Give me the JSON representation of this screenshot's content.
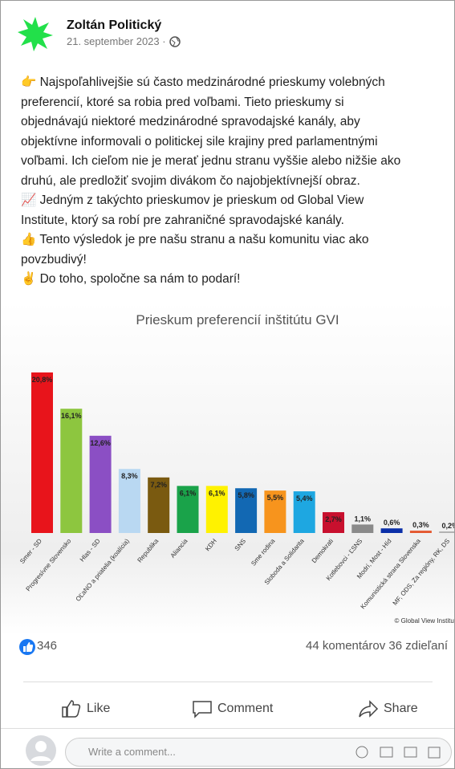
{
  "post": {
    "author": "Zoltán Politický",
    "date": "21. september 2023 ·",
    "text_lines": [
      "👉 Najspoľahlivejšie sú často medzinárodné prieskumy volebných",
      "preferencií, ktoré sa robia pred voľbami. Tieto prieskumy si",
      "objednávajú niektoré medzinárodné spravodajské kanály, aby",
      "objektívne informovali o politickej sile krajiny pred parlamentnými",
      "voľbami. Ich cieľom nie je merať jednu stranu vyššie alebo nižšie ako",
      "druhú, ale predložiť svojim divákom čo najobjektívnejší obraz.",
      "📈 Jedným z takýchto prieskumov je prieskum od Global View",
      "Institute, ktorý sa robí pre zahraničné spravodajské kanály.",
      "👍 Tento výsledok je pre našu stranu a našu komunitu viac ako",
      "povzbudivý!",
      "✌ Do toho, spoločne sa nám to podarí!"
    ],
    "reactions": "346",
    "comments_shares": "44 komentárov 36 zdieľaní",
    "actions": [
      "Like",
      "Comment",
      "Share"
    ],
    "comment_placeholder": "Write a comment..."
  },
  "chart_data": {
    "type": "bar",
    "title": "Prieskum preferencií inštitútu GVI",
    "source": "© Global View Institut",
    "categories": [
      "Smer - SD",
      "Progresívne Slovensko",
      "Hlas - SD",
      "OĽaNO a priatelia (koalícia)",
      "Republika",
      "Aliancia",
      "KDH",
      "SNS",
      "Sme rodina",
      "Sloboda a Solidarita",
      "Demokrati",
      "Kotlebovci - ĽSNS",
      "Modrí, Most - Híd",
      "Komunistická strana Slovenska",
      "MF, ODS, Za regióny, RK, DS"
    ],
    "values": [
      20.8,
      16.1,
      12.6,
      8.3,
      7.2,
      6.1,
      6.1,
      5.8,
      5.5,
      5.4,
      2.7,
      1.1,
      0.6,
      0.3,
      0.2
    ],
    "value_labels": [
      "20,8%",
      "16,1%",
      "12,6%",
      "8,3%",
      "7,2%",
      "6,1%",
      "6,1%",
      "5,8%",
      "5,5%",
      "5,4%",
      "2,7%",
      "1,1%",
      "0,6%",
      "0,3%",
      "0,2%"
    ],
    "colors": [
      "#e8141b",
      "#8dc63f",
      "#8b4fc4",
      "#b9d8f2",
      "#7a5a10",
      "#1aa34a",
      "#fff200",
      "#1268b3",
      "#f7941d",
      "#1ea7e1",
      "#c8102e",
      "#8a8a8a",
      "#0b2fa8",
      "#e4572e",
      "#b0b0b0"
    ]
  }
}
